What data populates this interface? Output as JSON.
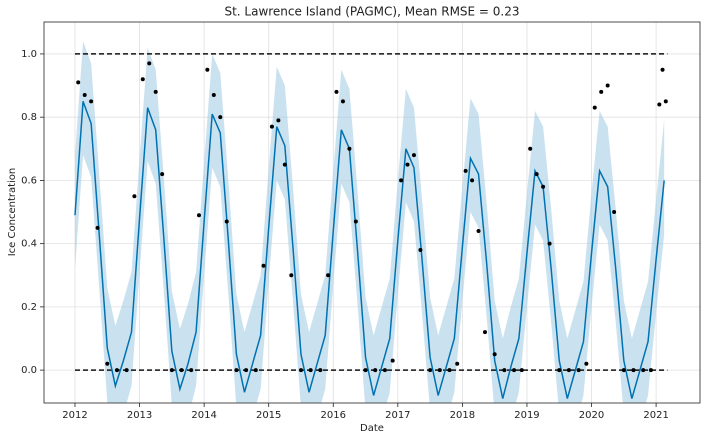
{
  "chart_data": {
    "type": "forecast",
    "title": "St. Lawrence Island (PAGMC), Mean RMSE = 0.23",
    "xlabel": "Date",
    "ylabel": "Ice Concentration",
    "xlim": [
      2011.52,
      2021.68
    ],
    "ylim": [
      -0.104,
      1.101
    ],
    "xticks": [
      2012,
      2013,
      2014,
      2015,
      2016,
      2017,
      2018,
      2019,
      2020,
      2021
    ],
    "yticks": [
      {
        "value": 0,
        "label": "0.0"
      },
      {
        "value": 0.2,
        "label": "0.2"
      },
      {
        "value": 0.4,
        "label": "0.4"
      },
      {
        "value": 0.6,
        "label": "0.6"
      },
      {
        "value": 0.8,
        "label": "0.8"
      },
      {
        "value": 1,
        "label": "1.0"
      }
    ],
    "grid": true,
    "cap": 1,
    "floor": 0,
    "forecast": {
      "color": "#0072b2",
      "band_color": "#9fcae2",
      "x": [
        2012,
        2012.125,
        2012.25,
        2012.375,
        2012.5,
        2012.625,
        2012.75,
        2012.875,
        2013,
        2013.125,
        2013.25,
        2013.375,
        2013.5,
        2013.625,
        2013.75,
        2013.875,
        2014,
        2014.125,
        2014.25,
        2014.375,
        2014.5,
        2014.625,
        2014.75,
        2014.875,
        2015,
        2015.125,
        2015.25,
        2015.375,
        2015.5,
        2015.625,
        2015.75,
        2015.875,
        2016,
        2016.125,
        2016.25,
        2016.375,
        2016.5,
        2016.625,
        2016.75,
        2016.875,
        2017,
        2017.125,
        2017.25,
        2017.375,
        2017.5,
        2017.625,
        2017.75,
        2017.875,
        2018,
        2018.125,
        2018.25,
        2018.375,
        2018.5,
        2018.625,
        2018.75,
        2018.875,
        2019,
        2019.125,
        2019.25,
        2019.375,
        2019.5,
        2019.625,
        2019.75,
        2019.875,
        2020,
        2020.125,
        2020.25,
        2020.375,
        2020.5,
        2020.625,
        2020.75,
        2020.875,
        2021,
        2021.125
      ],
      "values": [
        0.49,
        0.85,
        0.78,
        0.43,
        0.07,
        -0.05,
        0.03,
        0.12,
        0.48,
        0.83,
        0.76,
        0.42,
        0.06,
        -0.06,
        0.02,
        0.12,
        0.47,
        0.81,
        0.75,
        0.41,
        0.05,
        -0.07,
        0.02,
        0.11,
        0.45,
        0.77,
        0.71,
        0.39,
        0.05,
        -0.07,
        0.02,
        0.11,
        0.44,
        0.76,
        0.7,
        0.38,
        0.04,
        -0.08,
        0.01,
        0.1,
        0.41,
        0.7,
        0.64,
        0.35,
        0.04,
        -0.08,
        0.01,
        0.1,
        0.39,
        0.67,
        0.62,
        0.34,
        0.03,
        -0.09,
        0.01,
        0.1,
        0.37,
        0.63,
        0.58,
        0.32,
        0.03,
        -0.09,
        0.0,
        0.09,
        0.37,
        0.63,
        0.58,
        0.32,
        0.03,
        -0.09,
        0.0,
        0.09,
        0.35,
        0.6
      ],
      "lower": [
        0.32,
        0.68,
        0.61,
        0.26,
        -0.1,
        -0.22,
        -0.14,
        -0.05,
        0.31,
        0.66,
        0.59,
        0.25,
        -0.11,
        -0.23,
        -0.15,
        -0.05,
        0.3,
        0.64,
        0.58,
        0.24,
        -0.12,
        -0.24,
        -0.15,
        -0.06,
        0.28,
        0.6,
        0.54,
        0.22,
        -0.12,
        -0.24,
        -0.15,
        -0.06,
        0.27,
        0.59,
        0.53,
        0.21,
        -0.13,
        -0.25,
        -0.16,
        -0.07,
        0.24,
        0.53,
        0.47,
        0.18,
        -0.13,
        -0.25,
        -0.16,
        -0.07,
        0.22,
        0.5,
        0.45,
        0.17,
        -0.14,
        -0.26,
        -0.16,
        -0.07,
        0.2,
        0.46,
        0.41,
        0.15,
        -0.14,
        -0.26,
        -0.17,
        -0.08,
        0.2,
        0.46,
        0.41,
        0.15,
        -0.14,
        -0.26,
        -0.17,
        -0.08,
        0.18,
        0.43
      ],
      "upper": [
        0.68,
        1.04,
        0.97,
        0.62,
        0.26,
        0.14,
        0.22,
        0.31,
        0.67,
        1.02,
        0.95,
        0.61,
        0.25,
        0.13,
        0.21,
        0.31,
        0.66,
        1.0,
        0.94,
        0.6,
        0.24,
        0.12,
        0.21,
        0.3,
        0.64,
        0.96,
        0.9,
        0.58,
        0.24,
        0.12,
        0.21,
        0.3,
        0.63,
        0.95,
        0.89,
        0.57,
        0.23,
        0.11,
        0.2,
        0.29,
        0.6,
        0.89,
        0.83,
        0.54,
        0.23,
        0.11,
        0.2,
        0.29,
        0.58,
        0.86,
        0.81,
        0.53,
        0.22,
        0.1,
        0.2,
        0.29,
        0.56,
        0.82,
        0.77,
        0.51,
        0.22,
        0.1,
        0.19,
        0.28,
        0.56,
        0.82,
        0.77,
        0.51,
        0.22,
        0.1,
        0.19,
        0.28,
        0.54,
        0.79
      ]
    },
    "observed": {
      "color": "#000000",
      "x": [
        2012.05,
        2012.15,
        2012.25,
        2012.35,
        2012.5,
        2012.65,
        2012.8,
        2012.92,
        2013.05,
        2013.15,
        2013.25,
        2013.35,
        2013.5,
        2013.65,
        2013.8,
        2013.92,
        2014.05,
        2014.15,
        2014.25,
        2014.35,
        2014.5,
        2014.65,
        2014.8,
        2014.92,
        2015.05,
        2015.15,
        2015.25,
        2015.35,
        2015.5,
        2015.65,
        2015.8,
        2015.92,
        2016.05,
        2016.15,
        2016.25,
        2016.35,
        2016.5,
        2016.65,
        2016.8,
        2016.92,
        2017.05,
        2017.15,
        2017.25,
        2017.35,
        2017.5,
        2017.65,
        2017.8,
        2017.92,
        2018.05,
        2018.15,
        2018.25,
        2018.35,
        2018.5,
        2018.65,
        2018.8,
        2018.92,
        2019.05,
        2019.15,
        2019.25,
        2019.35,
        2019.5,
        2019.65,
        2019.8,
        2019.92,
        2020.05,
        2020.15,
        2020.25,
        2020.35,
        2020.5,
        2020.65,
        2020.8,
        2020.92,
        2021.05,
        2021.1,
        2021.15
      ],
      "values": [
        0.91,
        0.87,
        0.85,
        0.45,
        0.02,
        0,
        0,
        0.55,
        0.92,
        0.97,
        0.88,
        0.62,
        0,
        0,
        0,
        0.49,
        0.95,
        0.87,
        0.8,
        0.47,
        0,
        0,
        0,
        0.33,
        0.77,
        0.79,
        0.65,
        0.3,
        0,
        0,
        0,
        0.3,
        0.88,
        0.85,
        0.7,
        0.47,
        0,
        0,
        0,
        0.03,
        0.6,
        0.65,
        0.68,
        0.38,
        0,
        0,
        0,
        0.02,
        0.63,
        0.6,
        0.44,
        0.12,
        0.05,
        0,
        0,
        0,
        0.7,
        0.62,
        0.58,
        0.4,
        0,
        0,
        0,
        0.02,
        0.83,
        0.88,
        0.9,
        0.5,
        0,
        0,
        0,
        0,
        0.84,
        0.95,
        0.85
      ]
    }
  }
}
